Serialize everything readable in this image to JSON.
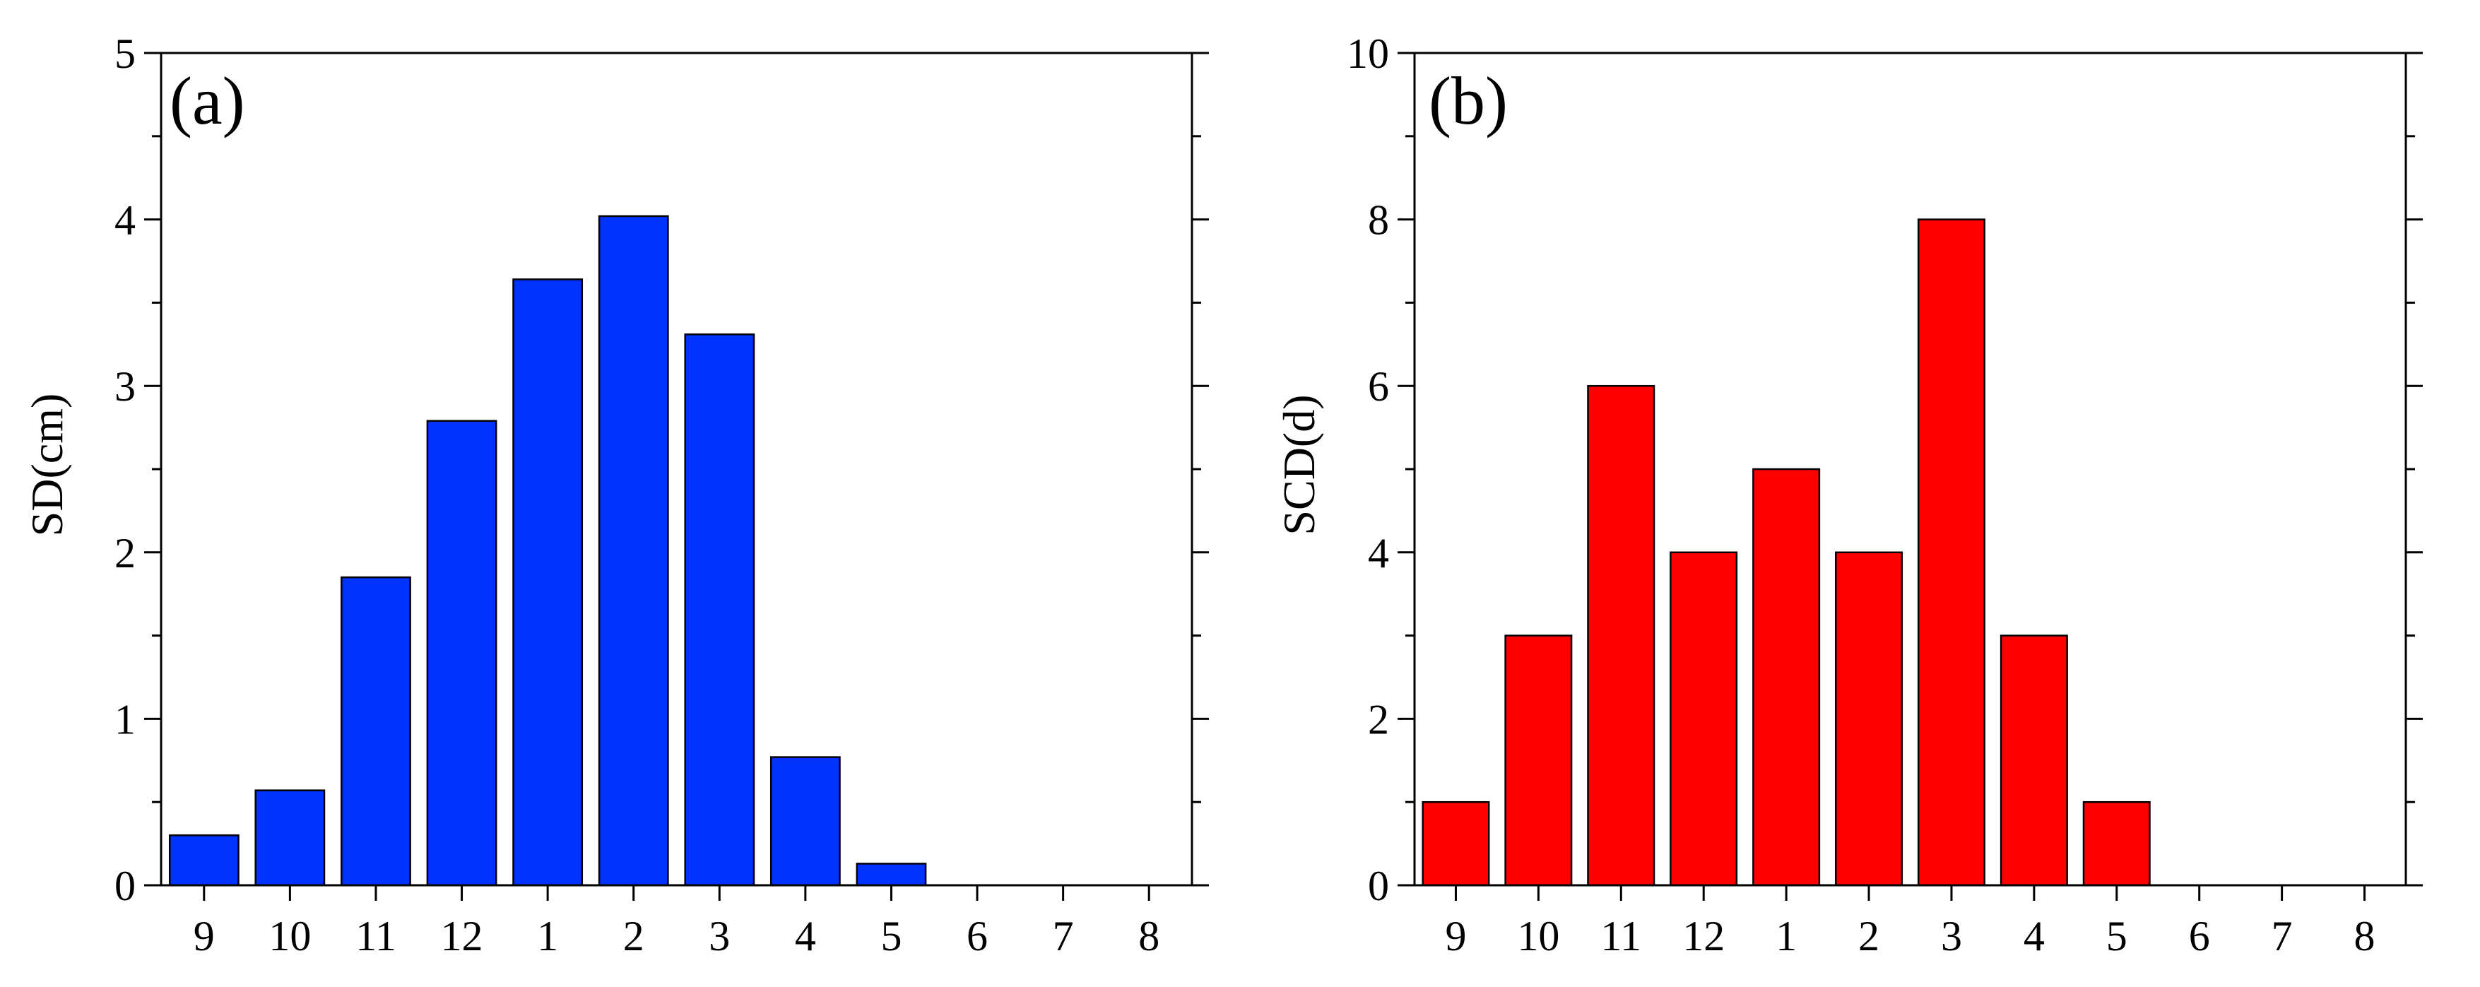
{
  "chart_data": [
    {
      "type": "bar",
      "panel_label": "(a)",
      "categories": [
        "9",
        "10",
        "11",
        "12",
        "1",
        "2",
        "3",
        "4",
        "5",
        "6",
        "7",
        "8"
      ],
      "values": [
        0.3,
        0.57,
        1.85,
        2.79,
        3.64,
        4.02,
        3.31,
        0.77,
        0.13,
        0,
        0,
        0
      ],
      "ylabel": "SD(cm)",
      "xlabel": "",
      "ylim": [
        0,
        5
      ],
      "yticks": [
        "0",
        "1",
        "2",
        "3",
        "4",
        "5"
      ],
      "color": "#0033FF"
    },
    {
      "type": "bar",
      "panel_label": "(b)",
      "categories": [
        "9",
        "10",
        "11",
        "12",
        "1",
        "2",
        "3",
        "4",
        "5",
        "6",
        "7",
        "8"
      ],
      "values": [
        1,
        3,
        6,
        4,
        5,
        4,
        8,
        3,
        1,
        0,
        0,
        0
      ],
      "ylabel": "SCD(d)",
      "xlabel": "",
      "ylim": [
        0,
        10
      ],
      "yticks": [
        "0",
        "2",
        "4",
        "6",
        "8",
        "10"
      ],
      "color": "#FF0000"
    }
  ]
}
